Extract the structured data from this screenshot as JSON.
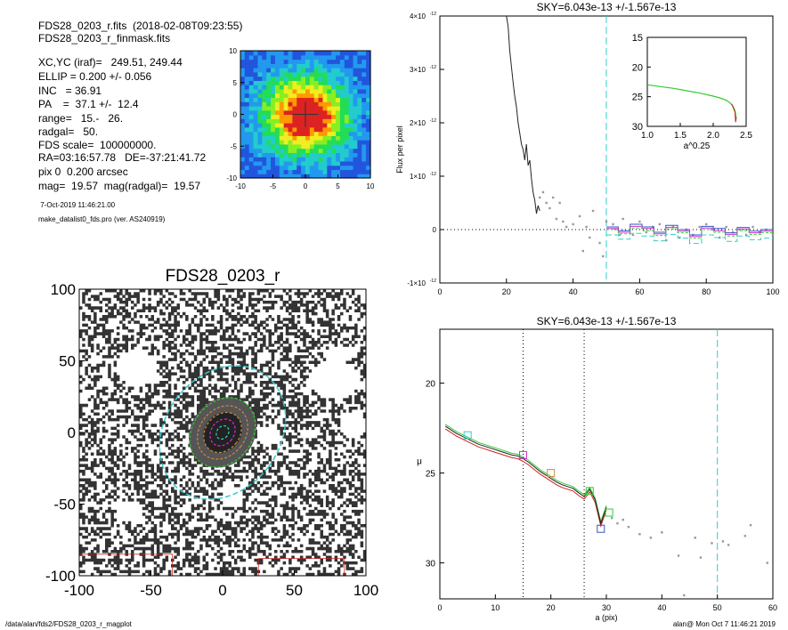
{
  "header": {
    "line1": "FDS28_0203_r.fits  (2018-02-08T09:23:55)",
    "line2": "FDS28_0203_r_finmask.fits",
    "lines": [
      "XC,YC (iraf)=   249.51, 249.44",
      "ELLIP = 0.200 +/- 0.056",
      "INC   = 36.91",
      "PA    =  37.1 +/-  12.4",
      "range=   15.-   26.",
      "radgal=   50.",
      "FDS scale=  100000000.",
      "RA=03:16:57.78   DE=-37:21:41.72",
      "pix 0  0.200 arcsec",
      "mag=  19.57  mag(radgal)=  19.57"
    ],
    "date": " 7-Oct-2019 11:46:21.00",
    "program": "make_datalist0_fds.pro (ver. AS240919)"
  },
  "footer": {
    "path": "/data/alan/fds2/FDS28_0203_r_magplot",
    "user": "alan@  Mon Oct  7 11:46:21 2019"
  },
  "colors": {
    "cyan": "#33cccc",
    "magenta": "#cc33cc",
    "green": "#33cc33",
    "blue": "#3355cc",
    "red": "#cc2222",
    "orange": "#cc8844"
  },
  "chart_data": [
    {
      "type": "heatmap",
      "xlim": [
        -10,
        10
      ],
      "ylim": [
        -10,
        10
      ],
      "xticks": [
        -10,
        -5,
        0,
        5,
        10
      ],
      "yticks": [
        -10,
        -5,
        0,
        5,
        10
      ]
    },
    {
      "type": "scatter",
      "title": "FDS28_0203_r",
      "xlim": [
        -100,
        100
      ],
      "ylim": [
        -100,
        100
      ],
      "xticks": [
        -100,
        -50,
        0,
        50,
        100
      ],
      "yticks": [
        -100,
        -50,
        0,
        50,
        100
      ],
      "ellipse_radii": [
        5,
        10,
        15,
        20,
        26,
        50
      ],
      "ellip": 0.2,
      "pa": 37.1
    },
    {
      "type": "line",
      "title": "SKY=6.043e-13 +/-1.567e-13",
      "ylabel": "Flux per pixel",
      "xlim": [
        0,
        100
      ],
      "ylim": [
        -1e-12,
        4e-12
      ],
      "xticks": [
        0,
        20,
        40,
        60,
        80,
        100
      ],
      "ytick_values": [
        -1e-12,
        0,
        1e-12,
        2e-12,
        3e-12,
        4e-12
      ],
      "ytick_mant": [
        "-1×10",
        "0",
        "1×10",
        "2×10",
        "3×10",
        "4×10"
      ],
      "ytick_exp": [
        "-12",
        "",
        "-12",
        "-12",
        "-12",
        "-12"
      ],
      "vline": 50,
      "profile": {
        "x": [
          20,
          20.5,
          21,
          21.5,
          22,
          22.5,
          23,
          23.5,
          24,
          24.5,
          25,
          25.5,
          26,
          26.5,
          27,
          27.5,
          28,
          28.5,
          29,
          29.5,
          30
        ],
        "y": [
          4e-12,
          3.8e-12,
          3.35e-12,
          3.05e-12,
          2.75e-12,
          2.5e-12,
          2.3e-12,
          2e-12,
          1.8e-12,
          1.6e-12,
          1.5e-12,
          1.3e-12,
          1.6e-12,
          1.2e-12,
          1.3e-12,
          9.5e-13,
          7e-13,
          5.5e-13,
          3e-13,
          4.5e-13,
          3.5e-13
        ]
      },
      "points": {
        "x": [
          30,
          31,
          32,
          33,
          34,
          35,
          36,
          37,
          38,
          40,
          42,
          43,
          44,
          45,
          46,
          48,
          49,
          50,
          52,
          54,
          55,
          57,
          58,
          60,
          62,
          64,
          66,
          68,
          70,
          72,
          74,
          76,
          78,
          80,
          82,
          84,
          86,
          88,
          90,
          92,
          94,
          96,
          98,
          100
        ],
        "y": [
          6e-13,
          7e-13,
          5e-13,
          4e-13,
          6e-13,
          2e-13,
          5e-13,
          1.5e-13,
          5e-14,
          1e-13,
          2.5e-13,
          -4e-13,
          5e-14,
          -1.5e-13,
          3.5e-13,
          -2.5e-13,
          -5e-13,
          1.5e-13,
          1e-13,
          -1e-13,
          2e-13,
          0.0,
          -1e-13,
          1.5e-13,
          -5e-14,
          5e-14,
          1e-13,
          -2e-13,
          5e-14,
          -1.5e-13,
          0.0,
          -1e-13,
          5e-14,
          1e-13,
          0.0,
          -1.5e-13,
          5e-14,
          -5e-14,
          0.0,
          -1e-13,
          5e-14,
          -5e-14,
          0.0,
          -1e-13
        ]
      },
      "steps": [
        {
          "color": "blue",
          "y": [
            5e-14,
            -2e-14,
            1e-13,
            5e-14,
            -5e-14,
            8e-14,
            0.0,
            -1e-13,
            6e-14,
            2e-14,
            -6e-14,
            4e-14,
            -3e-14,
            0.0
          ]
        },
        {
          "color": "magenta",
          "y": [
            2e-14,
            -5e-14,
            6e-14,
            2e-14,
            -8e-14,
            4e-14,
            -3e-14,
            -1.3e-13,
            3e-14,
            -2e-14,
            -9e-14,
            1e-14,
            -6e-14,
            -3e-14
          ]
        },
        {
          "color": "green",
          "y": [
            0.0,
            -8e-14,
            3e-14,
            -2e-14,
            -1.1e-13,
            1e-14,
            -6e-14,
            -1.6e-13,
            0.0,
            -5e-14,
            -1.2e-13,
            -2e-14,
            -9e-14,
            -6e-14
          ]
        },
        {
          "color": "cyan",
          "y": [
            -1e-13,
            -1.8e-13,
            -7e-14,
            -1.2e-13,
            -2.1e-13,
            -9e-14,
            -1.6e-13,
            -2.6e-13,
            -1e-13,
            -1.5e-13,
            -2.2e-13,
            -1.2e-13,
            -1.9e-13,
            -1.6e-13
          ]
        }
      ]
    },
    {
      "type": "line",
      "xlabel": "a^0.25",
      "xlim": [
        1.0,
        2.5
      ],
      "ylim": [
        30,
        15
      ],
      "xticks": [
        "1.0",
        "1.5",
        "2.0",
        "2.5"
      ],
      "xtick_values": [
        1.0,
        1.5,
        2.0,
        2.5
      ],
      "yticks": [
        15,
        20,
        25,
        30
      ],
      "x": [
        1.0,
        1.2,
        1.4,
        1.6,
        1.8,
        2.0,
        2.1,
        2.2,
        2.25,
        2.3,
        2.33,
        2.35
      ],
      "y": [
        23.0,
        23.3,
        23.6,
        24.0,
        24.4,
        24.9,
        25.2,
        25.6,
        26.0,
        26.6,
        27.3,
        28.6
      ]
    },
    {
      "type": "line",
      "title": "SKY=6.043e-13 +/-1.567e-13",
      "xlabel": "a (pix)",
      "ylabel": "μ",
      "xlim": [
        0,
        60
      ],
      "ylim": [
        32,
        17
      ],
      "xticks": [
        0,
        10,
        20,
        30,
        40,
        50,
        60
      ],
      "yticks": [
        20,
        25,
        30
      ],
      "vlines": [
        15,
        26
      ],
      "sky_line": 50,
      "profile": {
        "x": [
          1,
          2,
          3,
          4,
          5,
          6,
          7,
          8,
          9,
          10,
          11,
          12,
          13,
          14,
          15,
          16,
          17,
          18,
          19,
          20,
          21,
          22,
          23,
          24,
          25,
          26,
          27,
          28,
          29,
          30
        ],
        "y": [
          22.4,
          22.6,
          22.8,
          22.95,
          23.1,
          23.25,
          23.4,
          23.5,
          23.6,
          23.7,
          23.8,
          23.9,
          24.0,
          24.05,
          24.2,
          24.4,
          24.65,
          24.9,
          25.1,
          25.3,
          25.5,
          25.65,
          25.75,
          25.85,
          26.1,
          26.3,
          25.9,
          26.5,
          27.8,
          26.9
        ]
      },
      "points": {
        "x": [
          31,
          32,
          33,
          34,
          36,
          38,
          40,
          43,
          44,
          46,
          47,
          49,
          51,
          52,
          55,
          56,
          59
        ],
        "y": [
          27.5,
          27.8,
          27.6,
          28.0,
          28.4,
          28.6,
          28.3,
          29.6,
          31.8,
          28.6,
          29.7,
          28.9,
          28.8,
          29.0,
          28.5,
          27.9,
          30.0
        ]
      },
      "boxes": [
        {
          "x": 5,
          "y": 22.9,
          "color": "cyan"
        },
        {
          "x": 15,
          "y": 24.0,
          "color": "magenta"
        },
        {
          "x": 20,
          "y": 25.0,
          "color": "orange"
        },
        {
          "x": 27,
          "y": 26.0,
          "color": "green"
        },
        {
          "x": 30.5,
          "y": 27.2,
          "color": "green"
        },
        {
          "x": 29,
          "y": 28.1,
          "color": "blue"
        }
      ]
    }
  ]
}
